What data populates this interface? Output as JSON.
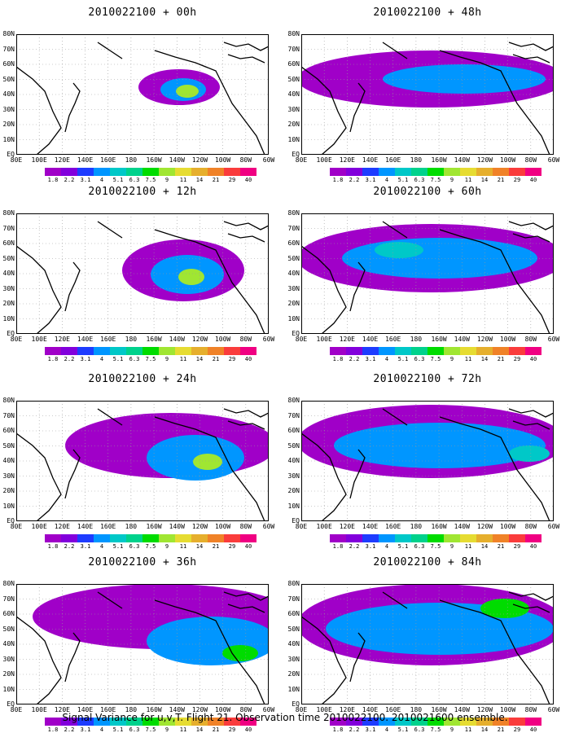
{
  "chart_data": [
    {
      "type": "heatmap",
      "title": "2010022100 + 00h",
      "position": "left"
    },
    {
      "type": "heatmap",
      "title": "2010022100 + 12h",
      "position": "left"
    },
    {
      "type": "heatmap",
      "title": "2010022100 + 24h",
      "position": "left"
    },
    {
      "type": "heatmap",
      "title": "2010022100 + 36h",
      "position": "left"
    },
    {
      "type": "heatmap",
      "title": "2010022100 + 48h",
      "position": "right"
    },
    {
      "type": "heatmap",
      "title": "2010022100 + 60h",
      "position": "right"
    },
    {
      "type": "heatmap",
      "title": "2010022100 + 72h",
      "position": "right"
    },
    {
      "type": "heatmap",
      "title": "2010022100 + 84h",
      "position": "right"
    }
  ],
  "axes": {
    "y_ticks": [
      "80N",
      "70N",
      "60N",
      "50N",
      "40N",
      "30N",
      "20N",
      "10N",
      "EQ"
    ],
    "x_ticks": [
      "80E",
      "100E",
      "120E",
      "140E",
      "160E",
      "180",
      "160W",
      "140W",
      "120W",
      "100W",
      "80W",
      "60W"
    ]
  },
  "colorbar": {
    "levels": [
      "1.8",
      "2.2",
      "3.1",
      "4",
      "5.1",
      "6.3",
      "7.5",
      "9",
      "11",
      "14",
      "21",
      "29",
      "40"
    ],
    "colors": [
      "#a000c8",
      "#8200dc",
      "#1e3cff",
      "#0096ff",
      "#00c8c8",
      "#00d28c",
      "#00dc00",
      "#a0e632",
      "#e6dc32",
      "#e6af2d",
      "#f08228",
      "#fa3c3c",
      "#f00082"
    ]
  },
  "caption": "Signal Variance for u,v,T. Flight 21. Observation time 2010022100. 2010021600 ensemble."
}
